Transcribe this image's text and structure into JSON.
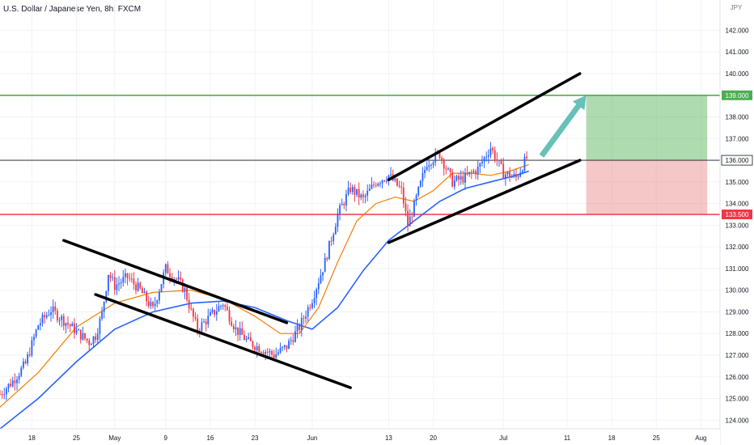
{
  "chart_data": {
    "type": "candlestick",
    "title": "U.S. Dollar / Japanese Yen, 8h, FXCM",
    "y_unit": "JPY",
    "ylim": [
      123.6,
      143.4
    ],
    "y_ticks": [
      124,
      125,
      126,
      127,
      128,
      129,
      130,
      131,
      132,
      133,
      134,
      135,
      136,
      137,
      138,
      139,
      140,
      141,
      142
    ],
    "y_tick_labels": [
      "124.000",
      "125.000",
      "126.000",
      "127.000",
      "128.000",
      "129.000",
      "130.000",
      "131.000",
      "132.000",
      "133.000",
      "134.000",
      "135.000",
      "136.000",
      "137.000",
      "138.000",
      "139.000",
      "140.000",
      "141.000",
      "142.000"
    ],
    "x_labels": [
      "18",
      "25",
      "May",
      "9",
      "16",
      "23",
      "Jun",
      "13",
      "20",
      "Jul",
      "11",
      "18",
      "25",
      "Aug"
    ],
    "x_label_days": [
      -13,
      -6,
      0,
      8,
      15,
      22,
      31,
      43,
      50,
      61,
      71,
      78,
      85,
      92
    ],
    "x_range_days": [
      -18,
      95
    ],
    "x_note": "days since May 1",
    "day_data_start": -18,
    "day_data_end": 65,
    "price_path": [
      [
        -18,
        125.2
      ],
      [
        -16,
        125.8
      ],
      [
        -14,
        126.6
      ],
      [
        -12,
        128.4
      ],
      [
        -10,
        129.1
      ],
      [
        -8,
        128.6
      ],
      [
        -6,
        128.1
      ],
      [
        -4,
        127.6
      ],
      [
        -3,
        127.9
      ],
      [
        -2,
        128.9
      ],
      [
        -1,
        130.8
      ],
      [
        0,
        130.2
      ],
      [
        2,
        130.6
      ],
      [
        4,
        130.0
      ],
      [
        6,
        129.1
      ],
      [
        8,
        131.0
      ],
      [
        10,
        130.4
      ],
      [
        11,
        130.0
      ],
      [
        12,
        129.0
      ],
      [
        13,
        128.2
      ],
      [
        15,
        128.8
      ],
      [
        17,
        129.4
      ],
      [
        19,
        128.2
      ],
      [
        21,
        127.6
      ],
      [
        23,
        127.3
      ],
      [
        25,
        127.0
      ],
      [
        27,
        127.4
      ],
      [
        29,
        128.3
      ],
      [
        31,
        129.6
      ],
      [
        33,
        131.3
      ],
      [
        35,
        133.5
      ],
      [
        37,
        134.7
      ],
      [
        39,
        134.2
      ],
      [
        41,
        135.0
      ],
      [
        43,
        135.3
      ],
      [
        45,
        134.6
      ],
      [
        46,
        133.0
      ],
      [
        47,
        133.9
      ],
      [
        49,
        135.9
      ],
      [
        51,
        136.3
      ],
      [
        53,
        135.0
      ],
      [
        55,
        135.2
      ],
      [
        57,
        135.6
      ],
      [
        59,
        136.6
      ],
      [
        61,
        135.4
      ],
      [
        63,
        135.2
      ],
      [
        65,
        136.3
      ]
    ],
    "ma_fast": [
      [
        -18,
        124.6
      ],
      [
        -12,
        126.2
      ],
      [
        -6,
        128.3
      ],
      [
        0,
        129.4
      ],
      [
        6,
        129.9
      ],
      [
        12,
        130.0
      ],
      [
        17,
        129.6
      ],
      [
        22,
        128.8
      ],
      [
        26,
        128.0
      ],
      [
        29,
        128.0
      ],
      [
        32,
        129.2
      ],
      [
        35,
        131.3
      ],
      [
        38,
        133.2
      ],
      [
        41,
        134.0
      ],
      [
        44,
        134.3
      ],
      [
        47,
        134.1
      ],
      [
        50,
        134.6
      ],
      [
        53,
        135.4
      ],
      [
        56,
        135.4
      ],
      [
        59,
        135.3
      ],
      [
        62,
        135.5
      ],
      [
        65,
        135.8
      ]
    ],
    "ma_slow": [
      [
        -18,
        123.6
      ],
      [
        -12,
        125.0
      ],
      [
        -6,
        126.7
      ],
      [
        0,
        128.2
      ],
      [
        6,
        129.0
      ],
      [
        12,
        129.4
      ],
      [
        17,
        129.5
      ],
      [
        22,
        129.2
      ],
      [
        27,
        128.6
      ],
      [
        31,
        128.2
      ],
      [
        35,
        129.2
      ],
      [
        39,
        130.9
      ],
      [
        43,
        132.3
      ],
      [
        47,
        133.2
      ],
      [
        51,
        134.1
      ],
      [
        55,
        134.7
      ],
      [
        59,
        135.0
      ],
      [
        63,
        135.3
      ],
      [
        65,
        135.5
      ]
    ],
    "hlines": [
      {
        "name": "resistance",
        "value": 139.0,
        "color": "#4caf50",
        "label": "139.000"
      },
      {
        "name": "support",
        "value": 133.5,
        "color": "#f23645",
        "label": "133.500"
      },
      {
        "name": "last-price",
        "value": 136.0,
        "color": "#131722",
        "label": "136.000"
      }
    ],
    "trendlines": [
      {
        "name": "down-channel-upper",
        "from": [
          -8,
          132.3
        ],
        "to": [
          27,
          128.5
        ]
      },
      {
        "name": "down-channel-lower",
        "from": [
          -3,
          129.8
        ],
        "to": [
          37,
          125.5
        ]
      },
      {
        "name": "up-channel-upper",
        "from": [
          43,
          135.1
        ],
        "to": [
          73,
          140.0
        ]
      },
      {
        "name": "up-channel-lower",
        "from": [
          43,
          132.2
        ],
        "to": [
          73,
          136.0
        ]
      }
    ],
    "arrow": {
      "from": [
        67,
        136.2
      ],
      "to": [
        74,
        139.0
      ],
      "color": "#4db6ac"
    },
    "position": {
      "entry": 136.0,
      "target": 139.0,
      "stop": 133.5,
      "x_from": 74,
      "x_to": 93,
      "profit_color": "#4caf50",
      "loss_color": "#e57373"
    },
    "colors": {
      "up": "#2962ff",
      "down": "#f23645",
      "ma_fast": "#f57c00",
      "ma_slow": "#2962ff"
    }
  }
}
